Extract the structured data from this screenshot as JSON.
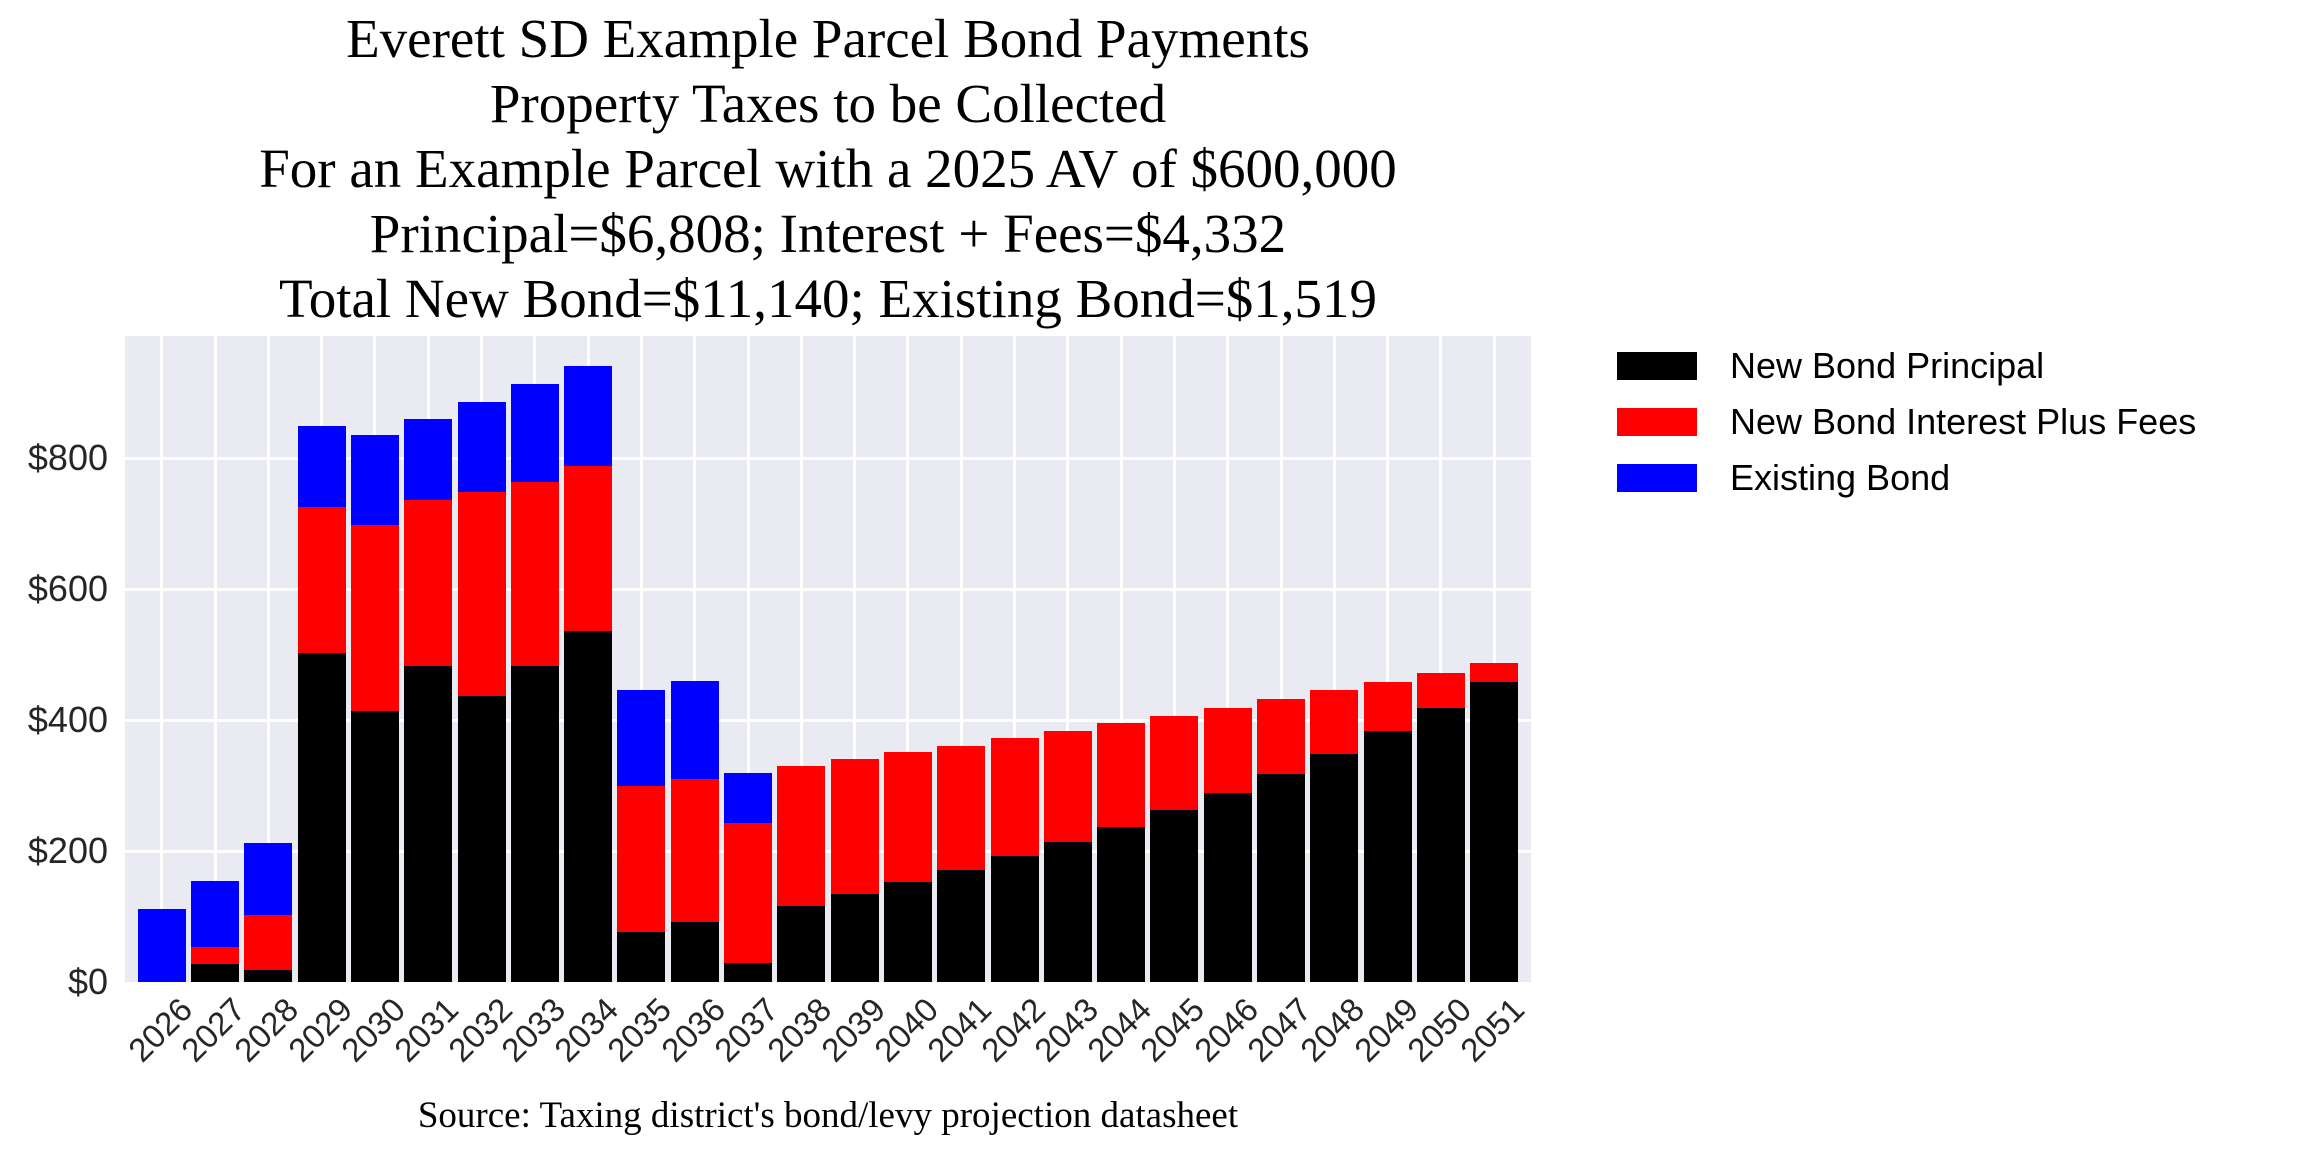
{
  "title": {
    "lines": [
      "Everett SD Example Parcel Bond Payments",
      "Property Taxes to be Collected",
      "For an Example Parcel with a 2025 AV of $600,000",
      "Principal=$6,808; Interest + Fees=$4,332",
      "Total New Bond=$11,140; Existing Bond=$1,519"
    ]
  },
  "source": "Source: Taxing district's bond/levy projection datasheet",
  "legend": {
    "items": [
      {
        "label": "New Bond Principal",
        "color": "#000000"
      },
      {
        "label": "New Bond Interest Plus Fees",
        "color": "#ff0000"
      },
      {
        "label": "Existing Bond",
        "color": "#0000ff"
      }
    ]
  },
  "colors": {
    "plot_background": "#eaeaf2",
    "grid": "#ffffff",
    "tick_text": "#262626"
  },
  "y_axis": {
    "ticks": [
      {
        "value": 0,
        "label": "$0"
      },
      {
        "value": 200,
        "label": "$200"
      },
      {
        "value": 400,
        "label": "$400"
      },
      {
        "value": 600,
        "label": "$600"
      },
      {
        "value": 800,
        "label": "$800"
      }
    ]
  },
  "chart_data": {
    "type": "bar",
    "stacked": true,
    "title": "Everett SD Example Parcel Bond Payments\nProperty Taxes to be Collected\nFor an Example Parcel with a 2025 AV of $600,000\nPrincipal=$6,808; Interest + Fees=$4,332\nTotal New Bond=$11,140; Existing Bond=$1,519",
    "xlabel": "",
    "ylabel": "",
    "ylim": [
      0,
      987
    ],
    "grid": true,
    "legend_position": "outside right, top",
    "x_tick_rotation": 45,
    "categories": [
      "2026",
      "2027",
      "2028",
      "2029",
      "2030",
      "2031",
      "2032",
      "2033",
      "2034",
      "2035",
      "2036",
      "2037",
      "2038",
      "2039",
      "2040",
      "2041",
      "2042",
      "2043",
      "2044",
      "2045",
      "2046",
      "2047",
      "2048",
      "2049",
      "2050",
      "2051"
    ],
    "series": [
      {
        "name": "New Bond Principal",
        "color": "#000000",
        "values": [
          0,
          28,
          18,
          502,
          414,
          483,
          437,
          483,
          536,
          77,
          92,
          29,
          116,
          134,
          153,
          171,
          193,
          214,
          237,
          263,
          289,
          318,
          349,
          383,
          419,
          458
        ]
      },
      {
        "name": "New Bond Interest Plus Fees",
        "color": "#ff0000",
        "values": [
          0,
          26,
          84,
          223,
          284,
          253,
          312,
          281,
          252,
          222,
          218,
          214,
          214,
          207,
          199,
          190,
          180,
          170,
          158,
          144,
          130,
          114,
          97,
          75,
          53,
          29
        ]
      },
      {
        "name": "Existing Bond",
        "color": "#0000ff",
        "values": [
          112,
          100,
          110,
          124,
          138,
          124,
          137,
          150,
          153,
          147,
          150,
          76,
          0,
          0,
          0,
          0,
          0,
          0,
          0,
          0,
          0,
          0,
          0,
          0,
          0,
          0
        ]
      }
    ],
    "yticks": [
      "$0",
      "$200",
      "$400",
      "$600",
      "$800"
    ],
    "source": "Source: Taxing district's bond/levy projection datasheet"
  }
}
